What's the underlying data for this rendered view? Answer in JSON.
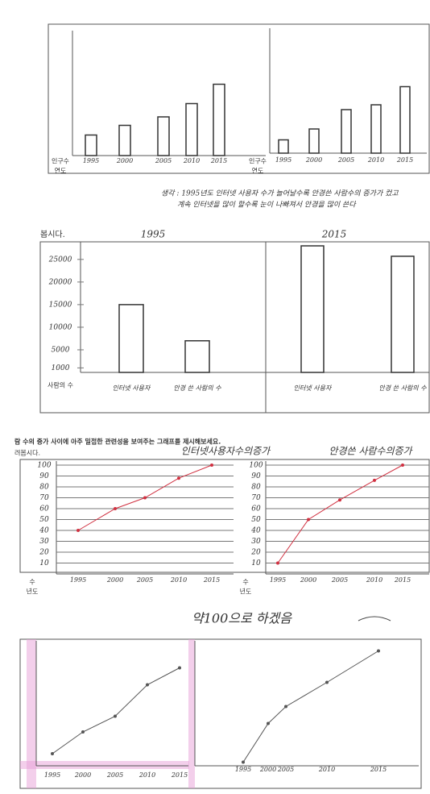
{
  "header": {
    "p2": "봅시다.",
    "p3": [
      "람 수의 증가 사이에 아주 밀접한 관련성을 보여주는 그래프를 제시해보세요.",
      "려봅시다."
    ]
  },
  "caption": [
    "생각 : 1995년도 인터넷 사용자 수가 늘어날수록 안경쓴 사람수의 증가가 컸고",
    "계속 인터넷을 많이 할수록 눈이 나빠져서 안경을 많이 쓴다"
  ],
  "note": "약100으로 하겠음",
  "charts": [
    {
      "type": "bar",
      "categories": [
        "1995",
        "2000",
        "2005",
        "2010",
        "2015"
      ],
      "values": [
        17,
        25,
        32,
        43,
        59
      ],
      "ylim": [
        0,
        100
      ],
      "corner": [
        "인구수",
        "연도"
      ]
    },
    {
      "type": "bar",
      "categories": [
        "1995",
        "2000",
        "2005",
        "2010",
        "2015"
      ],
      "values": [
        11,
        20,
        36,
        40,
        55
      ],
      "ylim": [
        0,
        100
      ],
      "corner": [
        "인구수",
        "연도"
      ]
    },
    {
      "type": "bar",
      "title": "1995",
      "categories": [
        "인터넷 사용자",
        "안경 쓴 사람의 수"
      ],
      "values": [
        15000,
        7000
      ],
      "ylim": [
        0,
        28000
      ],
      "yticks": [
        1000,
        5000,
        10000,
        15000,
        20000,
        25000
      ],
      "corner": [
        "사람의 수"
      ]
    },
    {
      "type": "bar",
      "title": "2015",
      "categories": [
        "인터넷 사용자",
        "안경 쓴 사람의 수"
      ],
      "values": [
        28000,
        25700
      ],
      "ylim": [
        0,
        28000
      ]
    },
    {
      "type": "line",
      "title": "인터넷사용자수의증가",
      "categories": [
        "1995",
        "2000",
        "2005",
        "2010",
        "2015"
      ],
      "values": [
        40,
        60,
        70,
        88,
        100
      ],
      "ylim": [
        0,
        100
      ],
      "yticks": [
        10,
        20,
        30,
        40,
        50,
        60,
        70,
        80,
        90,
        100
      ],
      "corner": [
        "수",
        "년도"
      ],
      "color": "#d03040"
    },
    {
      "type": "line",
      "title": "안경쓴 사람수의증가",
      "categories": [
        "1995",
        "2000",
        "2005",
        "2010",
        "2015"
      ],
      "values": [
        10,
        50,
        68,
        86,
        100
      ],
      "ylim": [
        0,
        100
      ],
      "yticks": [
        10,
        20,
        30,
        40,
        50,
        60,
        70,
        80,
        90,
        100
      ],
      "corner": [
        "수",
        "년도"
      ],
      "color": "#d03040"
    },
    {
      "type": "line",
      "categories": [
        "1995",
        "2000",
        "2005",
        "2010",
        "2015"
      ],
      "values": [
        10,
        28,
        41,
        67,
        81
      ],
      "ylim": [
        0,
        100
      ],
      "color": "#555555"
    },
    {
      "type": "line",
      "categories": [
        "1995",
        "2000",
        "2005",
        "2010",
        "2015"
      ],
      "values": [
        3,
        35,
        49,
        69,
        95
      ],
      "ylim": [
        0,
        100
      ],
      "color": "#555555"
    }
  ]
}
